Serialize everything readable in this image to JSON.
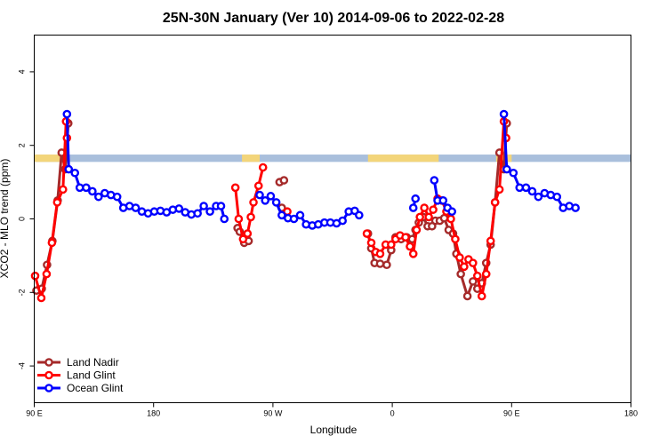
{
  "chart_data": {
    "type": "line",
    "title": "25N-30N January (Ver 10)   2014-09-06 to 2022-02-28",
    "xlabel": "Longitude",
    "ylabel": "XCO2 - MLO trend (ppm)",
    "xlim": [
      -90,
      180
    ],
    "ylim": [
      -5,
      5
    ],
    "x_ticks": [
      {
        "value": -90,
        "label": "90 E"
      },
      {
        "value": -36,
        "label": "180"
      },
      {
        "value": 18,
        "label": "90 W"
      },
      {
        "value": 72,
        "label": "0"
      },
      {
        "value": 126,
        "label": "90 E"
      },
      {
        "value": 180,
        "label": "180"
      }
    ],
    "y_ticks": [
      -4,
      -2,
      0,
      2,
      4
    ],
    "grid": false,
    "legend_position": "bottom-left",
    "landmask": {
      "y_range": [
        1.55,
        1.75
      ],
      "ocean_color": "#a9bfdc",
      "land_color": "#f3d57a",
      "land_segments": [
        [
          -90,
          -76
        ],
        [
          4,
          12
        ],
        [
          61,
          93
        ],
        [
          119,
          126
        ]
      ]
    },
    "series": [
      {
        "name": "Land Nadir",
        "color": "#a52a2a",
        "segments": [
          [
            [
              -89.0,
              -1.95
            ],
            [
              -86.6,
              -1.9
            ],
            [
              -84.2,
              -1.25
            ],
            [
              -81.8,
              -0.6
            ],
            [
              -79.4,
              0.5
            ],
            [
              -77.6,
              1.8
            ],
            [
              -76.0,
              1.35
            ],
            [
              -74.6,
              2.6
            ]
          ],
          [
            [
              2.0,
              -0.25
            ],
            [
              3.0,
              -0.35
            ],
            [
              5.0,
              -0.65
            ],
            [
              7.0,
              -0.6
            ]
          ],
          [
            [
              22.0,
              0.3
            ]
          ],
          [
            [
              21.0,
              1.0
            ],
            [
              23.0,
              1.05
            ]
          ],
          [
            [
              61.0,
              -0.4
            ],
            [
              62.5,
              -0.8
            ],
            [
              64.0,
              -1.2
            ],
            [
              66.5,
              -1.22
            ],
            [
              69.5,
              -1.25
            ],
            [
              71.5,
              -0.85
            ],
            [
              73.5,
              -0.5
            ],
            [
              76.0,
              -0.55
            ],
            [
              78.5,
              -0.5
            ],
            [
              81.0,
              -0.55
            ],
            [
              82.5,
              -0.3
            ],
            [
              84.0,
              -0.1
            ],
            [
              86.0,
              0.05
            ],
            [
              88.0,
              -0.2
            ],
            [
              90.0,
              -0.2
            ],
            [
              91.5,
              -0.05
            ],
            [
              93.5,
              -0.05
            ],
            [
              95.5,
              0.02
            ],
            [
              97.5,
              -0.3
            ],
            [
              99.5,
              -0.4
            ],
            [
              101.0,
              -0.95
            ],
            [
              103.0,
              -1.5
            ],
            [
              106.0,
              -2.1
            ],
            [
              108.5,
              -1.7
            ],
            [
              110.5,
              -1.9
            ],
            [
              112.5,
              -1.75
            ],
            [
              114.5,
              -1.2
            ],
            [
              116.5,
              -0.7
            ],
            [
              118.5,
              0.45
            ],
            [
              120.5,
              1.8
            ],
            [
              122.5,
              1.35
            ],
            [
              123.8,
              2.6
            ]
          ]
        ]
      },
      {
        "name": "Land Glint",
        "color": "#ff0000",
        "segments": [
          [
            [
              -89.6,
              -1.55
            ],
            [
              -86.8,
              -2.15
            ],
            [
              -84.4,
              -1.5
            ],
            [
              -82.0,
              -0.65
            ],
            [
              -79.6,
              0.45
            ],
            [
              -77.0,
              0.8
            ],
            [
              -75.6,
              2.65
            ],
            [
              -75.2,
              2.2
            ]
          ],
          [
            [
              1.0,
              0.85
            ],
            [
              2.5,
              0.0
            ],
            [
              4.5,
              -0.55
            ],
            [
              6.5,
              -0.4
            ],
            [
              8.0,
              0.05
            ],
            [
              9.2,
              0.45
            ],
            [
              11.5,
              0.9
            ],
            [
              13.5,
              1.4
            ]
          ],
          [
            [
              24.5,
              0.2
            ]
          ],
          [
            [
              60.5,
              -0.4
            ],
            [
              62.5,
              -0.65
            ],
            [
              64.5,
              -0.9
            ],
            [
              66.5,
              -0.95
            ],
            [
              69.0,
              -0.7
            ],
            [
              71.5,
              -0.7
            ],
            [
              73.5,
              -0.55
            ],
            [
              75.5,
              -0.45
            ],
            [
              78.0,
              -0.5
            ],
            [
              80.0,
              -0.75
            ],
            [
              81.5,
              -0.95
            ],
            [
              83.0,
              -0.3
            ],
            [
              84.5,
              0.05
            ],
            [
              86.5,
              0.3
            ],
            [
              88.5,
              0.05
            ],
            [
              90.5,
              0.25
            ],
            [
              92.5,
              0.55
            ],
            [
              94.5,
              0.5
            ],
            [
              96.5,
              0.2
            ],
            [
              98.5,
              0.0
            ],
            [
              100.5,
              -0.55
            ],
            [
              102.5,
              -1.05
            ],
            [
              104.5,
              -1.3
            ],
            [
              106.5,
              -1.1
            ],
            [
              108.5,
              -1.2
            ],
            [
              110.5,
              -1.55
            ],
            [
              112.5,
              -2.1
            ],
            [
              114.5,
              -1.5
            ],
            [
              116.5,
              -0.6
            ],
            [
              118.5,
              0.45
            ],
            [
              120.5,
              0.8
            ],
            [
              122.5,
              2.65
            ],
            [
              123.5,
              2.2
            ]
          ]
        ]
      },
      {
        "name": "Ocean Glint",
        "color": "#0000ff",
        "segments": [
          [
            [
              -75.2,
              2.85
            ],
            [
              -74.4,
              1.35
            ],
            [
              -71.6,
              1.25
            ],
            [
              -69.4,
              0.85
            ],
            [
              -66.5,
              0.85
            ],
            [
              -63.7,
              0.75
            ],
            [
              -60.9,
              0.6
            ],
            [
              -58.1,
              0.7
            ],
            [
              -55.3,
              0.65
            ],
            [
              -52.5,
              0.6
            ],
            [
              -49.7,
              0.3
            ],
            [
              -46.9,
              0.35
            ],
            [
              -44.1,
              0.3
            ],
            [
              -41.3,
              0.2
            ],
            [
              -38.5,
              0.15
            ],
            [
              -35.7,
              0.2
            ],
            [
              -32.9,
              0.22
            ],
            [
              -30.1,
              0.18
            ],
            [
              -27.3,
              0.25
            ],
            [
              -24.5,
              0.28
            ],
            [
              -21.7,
              0.18
            ],
            [
              -18.9,
              0.12
            ],
            [
              -16.1,
              0.15
            ],
            [
              -13.3,
              0.35
            ],
            [
              -10.5,
              0.2
            ],
            [
              -7.7,
              0.35
            ],
            [
              -5.5,
              0.35
            ],
            [
              -4.0,
              0.0
            ]
          ],
          [
            [
              12.0,
              0.65
            ],
            [
              14.5,
              0.5
            ],
            [
              17.0,
              0.62
            ],
            [
              19.5,
              0.45
            ],
            [
              22.0,
              0.1
            ],
            [
              24.8,
              0.02
            ],
            [
              27.5,
              0.0
            ],
            [
              30.3,
              0.1
            ],
            [
              33.0,
              -0.15
            ],
            [
              35.8,
              -0.18
            ],
            [
              38.5,
              -0.15
            ],
            [
              41.3,
              -0.1
            ],
            [
              44.0,
              -0.1
            ],
            [
              46.8,
              -0.12
            ],
            [
              49.5,
              -0.05
            ],
            [
              52.3,
              0.2
            ],
            [
              55.0,
              0.22
            ],
            [
              57.0,
              0.1
            ]
          ],
          [
            [
              81.5,
              0.3
            ],
            [
              82.5,
              0.55
            ]
          ],
          [
            [
              91.0,
              1.05
            ],
            [
              92.5,
              0.5
            ],
            [
              95.0,
              0.5
            ],
            [
              97.0,
              0.3
            ],
            [
              99.0,
              0.2
            ]
          ],
          [
            [
              122.5,
              2.85
            ],
            [
              123.8,
              1.35
            ],
            [
              126.8,
              1.25
            ],
            [
              129.6,
              0.85
            ],
            [
              132.5,
              0.85
            ],
            [
              135.3,
              0.75
            ],
            [
              138.1,
              0.6
            ],
            [
              140.9,
              0.7
            ],
            [
              143.7,
              0.65
            ],
            [
              146.5,
              0.6
            ],
            [
              149.3,
              0.3
            ],
            [
              152.1,
              0.35
            ],
            [
              154.9,
              0.3
            ]
          ]
        ]
      }
    ]
  }
}
